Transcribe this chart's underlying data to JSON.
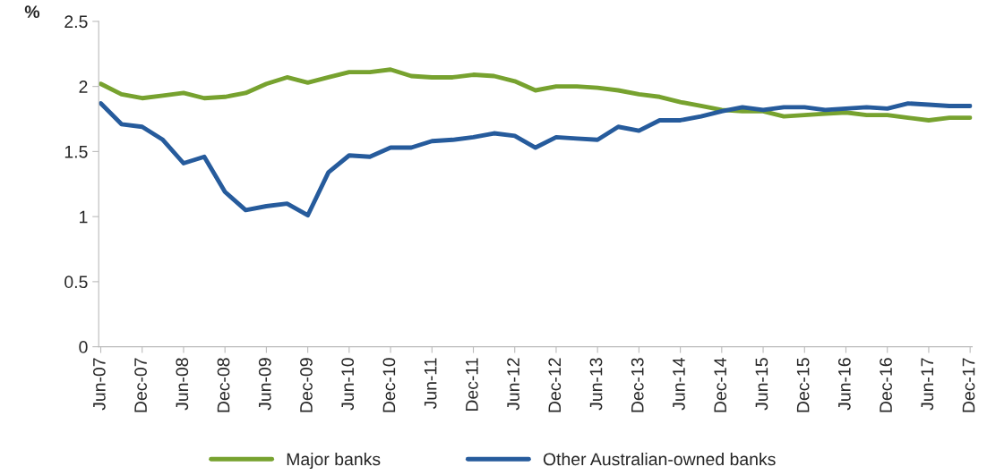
{
  "chart_data": {
    "type": "line",
    "ylabel": "%",
    "categories": [
      "Jun-07",
      null,
      "Dec-07",
      null,
      "Jun-08",
      null,
      "Dec-08",
      null,
      "Jun-09",
      null,
      "Dec-09",
      null,
      "Jun-10",
      null,
      "Dec-10",
      null,
      "Jun-11",
      null,
      "Dec-11",
      null,
      "Jun-12",
      null,
      "Dec-12",
      null,
      "Jun-13",
      null,
      "Dec-13",
      null,
      "Jun-14",
      null,
      "Dec-14",
      null,
      "Jun-15",
      null,
      "Dec-15",
      null,
      "Jun-16",
      null,
      "Dec-16",
      null,
      "Jun-17",
      null,
      "Dec-17"
    ],
    "series": [
      {
        "name": "Major banks",
        "color": "#77a22f",
        "values": [
          2.02,
          1.94,
          1.91,
          1.93,
          1.95,
          1.91,
          1.92,
          1.95,
          2.02,
          2.07,
          2.03,
          2.07,
          2.11,
          2.11,
          2.13,
          2.08,
          2.07,
          2.07,
          2.09,
          2.08,
          2.04,
          1.97,
          2.0,
          2.0,
          1.99,
          1.97,
          1.94,
          1.92,
          1.88,
          1.85,
          1.82,
          1.81,
          1.81,
          1.77,
          1.78,
          1.79,
          1.8,
          1.78,
          1.78,
          1.76,
          1.74,
          1.76,
          1.76
        ]
      },
      {
        "name": "Other Australian-owned banks",
        "color": "#265b9c",
        "values": [
          1.87,
          1.71,
          1.69,
          1.59,
          1.41,
          1.46,
          1.19,
          1.05,
          1.08,
          1.1,
          1.01,
          1.34,
          1.47,
          1.46,
          1.53,
          1.53,
          1.58,
          1.59,
          1.61,
          1.64,
          1.62,
          1.53,
          1.61,
          1.6,
          1.59,
          1.69,
          1.66,
          1.74,
          1.74,
          1.77,
          1.81,
          1.84,
          1.82,
          1.84,
          1.84,
          1.82,
          1.83,
          1.84,
          1.83,
          1.87,
          1.86,
          1.85,
          1.85
        ]
      }
    ],
    "ylim": [
      0,
      2.5
    ],
    "yticks": [
      0,
      0.5,
      1,
      1.5,
      2,
      2.5
    ],
    "grid": false,
    "legend": "bottom",
    "marker": "none",
    "line_style": "solid"
  }
}
